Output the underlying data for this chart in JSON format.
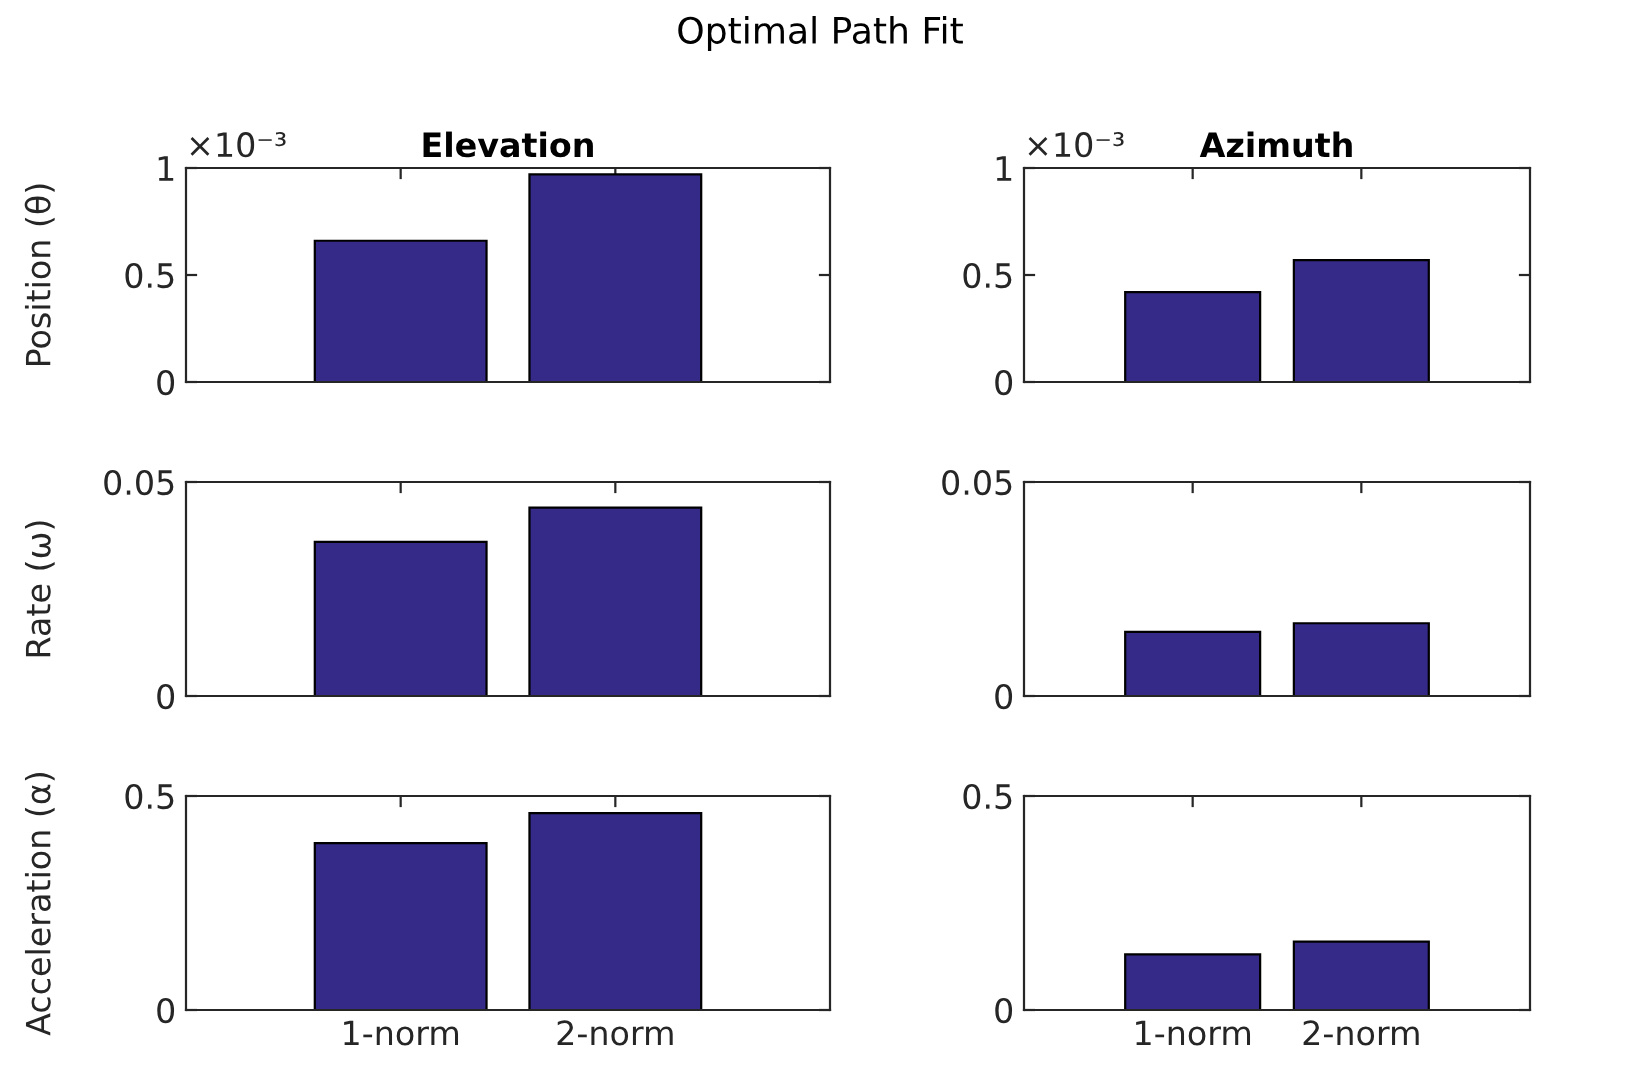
{
  "chart_data": [
    {
      "type": "bar",
      "title": "Elevation",
      "ylabel": "Position (θ)",
      "categories": [
        null,
        null
      ],
      "values": [
        0.66,
        0.97
      ],
      "color": "#352a87",
      "ylim": [
        0,
        1
      ],
      "yticks": [
        0,
        0.5,
        1
      ],
      "tick_labels": "y",
      "annotations": [
        "Optimal Path Fit",
        "×10⁻³"
      ]
    },
    {
      "type": "bar",
      "title": "Azimuth",
      "categories": [
        null,
        null
      ],
      "values": [
        0.42,
        0.57
      ],
      "color": "#352a87",
      "ylim": [
        0,
        1
      ],
      "yticks": [
        0,
        0.5,
        1
      ],
      "tick_labels": "y",
      "annotations": [
        "×10⁻³"
      ]
    },
    {
      "type": "bar",
      "ylabel": "Rate (ω)",
      "categories": [
        null,
        null
      ],
      "values": [
        0.036,
        0.044
      ],
      "color": "#352a87",
      "ylim": [
        0,
        0.05
      ],
      "yticks": [
        0,
        0.05
      ],
      "tick_labels": "y"
    },
    {
      "type": "bar",
      "categories": [
        null,
        null
      ],
      "values": [
        0.015,
        0.017
      ],
      "color": "#352a87",
      "ylim": [
        0,
        0.05
      ],
      "yticks": [
        0,
        0.05
      ],
      "tick_labels": "y"
    },
    {
      "type": "bar",
      "ylabel": "Acceleration (α)",
      "categories": [
        "1-norm",
        "2-norm"
      ],
      "values": [
        0.39,
        0.46
      ],
      "color": "#352a87",
      "ylim": [
        0,
        0.5
      ],
      "yticks": [
        0,
        0.5
      ]
    },
    {
      "type": "bar",
      "categories": [
        "1-norm",
        "2-norm"
      ],
      "values": [
        0.13,
        0.16
      ],
      "color": "#352a87",
      "ylim": [
        0,
        0.5
      ],
      "yticks": [
        0,
        0.5
      ]
    }
  ]
}
